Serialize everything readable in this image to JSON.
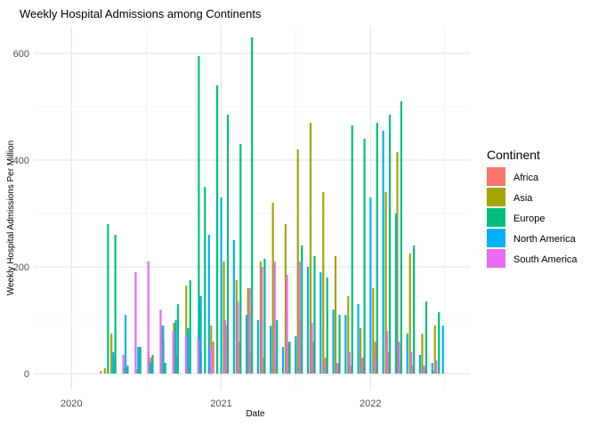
{
  "chart_data": {
    "type": "bar",
    "title": "Weekly Hospital Admissions among Continents",
    "xlabel": "Date",
    "ylabel": "Weekly Hospital Admissions Per Million",
    "xlim": [
      "2019-10-01",
      "2022-09-01"
    ],
    "ylim": [
      -30,
      650
    ],
    "x_ticks": [
      {
        "value": "2020-01-01",
        "label": "2020"
      },
      {
        "value": "2021-01-01",
        "label": "2021"
      },
      {
        "value": "2022-01-01",
        "label": "2022"
      }
    ],
    "y_ticks": [
      0,
      200,
      400,
      600
    ],
    "grid": true,
    "legend": {
      "title": "Continent",
      "position": "right"
    },
    "series": [
      {
        "name": "Africa",
        "color": "#F8766D",
        "values": [
          [
            "2020-03-20",
            5
          ],
          [
            "2020-04-20",
            30
          ],
          [
            "2020-05-20",
            10
          ],
          [
            "2020-06-20",
            40
          ],
          [
            "2020-07-20",
            30
          ],
          [
            "2020-08-20",
            60
          ],
          [
            "2020-09-20",
            35
          ],
          [
            "2020-10-20",
            20
          ],
          [
            "2020-11-20",
            40
          ],
          [
            "2020-12-20",
            60
          ],
          [
            "2021-01-20",
            90
          ],
          [
            "2021-02-20",
            60
          ],
          [
            "2021-03-20",
            40
          ],
          [
            "2021-04-20",
            30
          ],
          [
            "2021-05-20",
            30
          ],
          [
            "2021-06-20",
            60
          ],
          [
            "2021-07-20",
            100
          ],
          [
            "2021-08-20",
            60
          ],
          [
            "2021-09-20",
            30
          ],
          [
            "2021-10-20",
            20
          ],
          [
            "2021-11-20",
            15
          ],
          [
            "2021-12-20",
            30
          ],
          [
            "2022-01-20",
            60
          ],
          [
            "2022-02-20",
            40
          ],
          [
            "2022-03-20",
            20
          ],
          [
            "2022-04-20",
            15
          ],
          [
            "2022-05-20",
            10
          ],
          [
            "2022-06-10",
            5
          ]
        ]
      },
      {
        "name": "Asia",
        "color": "#A3A500",
        "values": [
          [
            "2020-03-25",
            10
          ],
          [
            "2020-04-10",
            75
          ],
          [
            "2020-05-10",
            10
          ],
          [
            "2020-06-10",
            8
          ],
          [
            "2020-07-10",
            40
          ],
          [
            "2020-08-10",
            90
          ],
          [
            "2020-09-10",
            95
          ],
          [
            "2020-10-10",
            165
          ],
          [
            "2020-11-10",
            80
          ],
          [
            "2020-12-10",
            90
          ],
          [
            "2021-01-10",
            210
          ],
          [
            "2021-02-10",
            175
          ],
          [
            "2021-03-10",
            160
          ],
          [
            "2021-04-10",
            210
          ],
          [
            "2021-05-10",
            320
          ],
          [
            "2021-06-10",
            280
          ],
          [
            "2021-07-10",
            420
          ],
          [
            "2021-08-10",
            470
          ],
          [
            "2021-09-10",
            340
          ],
          [
            "2021-10-10",
            220
          ],
          [
            "2021-11-10",
            145
          ],
          [
            "2021-12-10",
            85
          ],
          [
            "2022-01-10",
            160
          ],
          [
            "2022-02-10",
            340
          ],
          [
            "2022-03-10",
            415
          ],
          [
            "2022-04-10",
            225
          ],
          [
            "2022-05-10",
            75
          ],
          [
            "2022-06-10",
            90
          ]
        ]
      },
      {
        "name": "Europe",
        "color": "#00BF7D",
        "values": [
          [
            "2020-03-28",
            280
          ],
          [
            "2020-04-15",
            260
          ],
          [
            "2020-05-15",
            15
          ],
          [
            "2020-06-15",
            50
          ],
          [
            "2020-07-15",
            35
          ],
          [
            "2020-08-15",
            20
          ],
          [
            "2020-09-15",
            130
          ],
          [
            "2020-10-15",
            175
          ],
          [
            "2020-11-05",
            595
          ],
          [
            "2020-11-20",
            350
          ],
          [
            "2020-12-20",
            540
          ],
          [
            "2021-01-15",
            485
          ],
          [
            "2021-02-15",
            430
          ],
          [
            "2021-03-15",
            630
          ],
          [
            "2021-04-15",
            215
          ],
          [
            "2021-05-15",
            100
          ],
          [
            "2021-06-15",
            60
          ],
          [
            "2021-07-15",
            240
          ],
          [
            "2021-08-15",
            220
          ],
          [
            "2021-09-15",
            180
          ],
          [
            "2021-10-15",
            110
          ],
          [
            "2021-11-15",
            465
          ],
          [
            "2021-12-15",
            440
          ],
          [
            "2022-01-15",
            470
          ],
          [
            "2022-02-15",
            485
          ],
          [
            "2022-03-15",
            510
          ],
          [
            "2022-04-15",
            240
          ],
          [
            "2022-05-15",
            135
          ],
          [
            "2022-06-15",
            115
          ]
        ]
      },
      {
        "name": "North America",
        "color": "#00B0F6",
        "values": [
          [
            "2020-04-05",
            40
          ],
          [
            "2020-05-05",
            110
          ],
          [
            "2020-06-05",
            50
          ],
          [
            "2020-07-05",
            20
          ],
          [
            "2020-08-05",
            90
          ],
          [
            "2020-09-05",
            100
          ],
          [
            "2020-10-05",
            85
          ],
          [
            "2020-11-05",
            145
          ],
          [
            "2020-11-25",
            260
          ],
          [
            "2020-12-25",
            330
          ],
          [
            "2021-01-25",
            250
          ],
          [
            "2021-02-25",
            110
          ],
          [
            "2021-03-25",
            100
          ],
          [
            "2021-04-25",
            90
          ],
          [
            "2021-05-25",
            50
          ],
          [
            "2021-06-25",
            70
          ],
          [
            "2021-07-25",
            200
          ],
          [
            "2021-08-25",
            190
          ],
          [
            "2021-09-25",
            120
          ],
          [
            "2021-10-25",
            110
          ],
          [
            "2021-11-25",
            130
          ],
          [
            "2021-12-25",
            330
          ],
          [
            "2022-01-25",
            455
          ],
          [
            "2022-02-25",
            300
          ],
          [
            "2022-03-25",
            75
          ],
          [
            "2022-04-25",
            35
          ],
          [
            "2022-05-25",
            20
          ],
          [
            "2022-06-20",
            90
          ]
        ]
      },
      {
        "name": "South America",
        "color": "#E76BF3",
        "values": [
          [
            "2020-04-25",
            35
          ],
          [
            "2020-05-25",
            190
          ],
          [
            "2020-06-25",
            210
          ],
          [
            "2020-07-25",
            120
          ],
          [
            "2020-08-25",
            80
          ],
          [
            "2020-09-25",
            70
          ],
          [
            "2020-10-25",
            65
          ],
          [
            "2020-11-25",
            50
          ],
          [
            "2020-12-30",
            100
          ],
          [
            "2021-01-30",
            135
          ],
          [
            "2021-02-28",
            160
          ],
          [
            "2021-03-30",
            200
          ],
          [
            "2021-04-30",
            210
          ],
          [
            "2021-05-30",
            185
          ],
          [
            "2021-06-30",
            210
          ],
          [
            "2021-07-30",
            95
          ],
          [
            "2021-08-30",
            20
          ],
          [
            "2021-09-30",
            20
          ],
          [
            "2021-10-30",
            40
          ],
          [
            "2021-11-30",
            30
          ],
          [
            "2021-12-30",
            30
          ],
          [
            "2022-01-30",
            80
          ],
          [
            "2022-02-28",
            60
          ],
          [
            "2022-03-30",
            40
          ],
          [
            "2022-04-30",
            15
          ],
          [
            "2022-05-30",
            25
          ]
        ]
      }
    ]
  }
}
